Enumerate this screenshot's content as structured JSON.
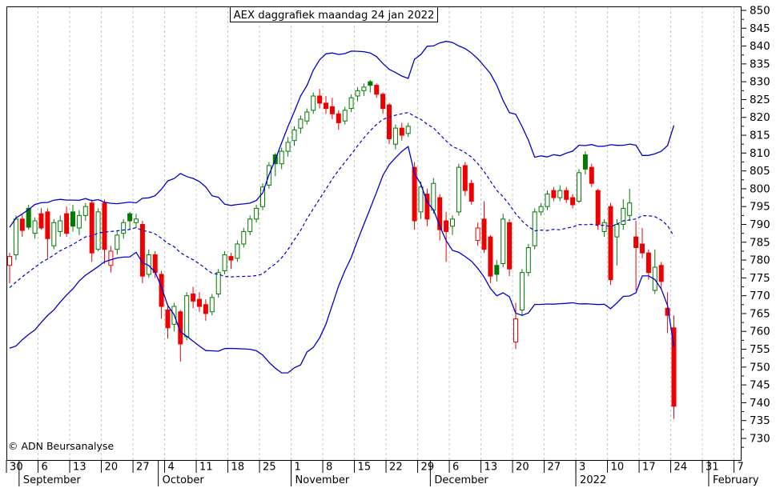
{
  "title": "AEX daggrafiek maandag 24 jan 2022",
  "copyright": "© ADN Beursanalyse",
  "chart_data": {
    "type": "candlestick",
    "indicator": "bollinger-bands",
    "title": "AEX daggrafiek maandag 24 jan 2022",
    "y_axis": {
      "min": 730,
      "max": 850,
      "step": 5,
      "minor_step": 2.5,
      "side": "right"
    },
    "x_axis": {
      "week_labels": [
        "30",
        "6",
        "13",
        "20",
        "27",
        "4",
        "11",
        "18",
        "25",
        "1",
        "8",
        "15",
        "22",
        "29",
        "6",
        "13",
        "20",
        "27",
        "3",
        "10",
        "17",
        "24",
        "31",
        "7"
      ],
      "months": [
        {
          "label": "September",
          "boundary_idx": 1.5
        },
        {
          "label": "October",
          "boundary_idx": 23.5
        },
        {
          "label": "November",
          "boundary_idx": 44.5
        },
        {
          "label": "December",
          "boundary_idx": 66.5
        },
        {
          "label": "2022",
          "boundary_idx": 89.5
        },
        {
          "label": "February",
          "boundary_idx": 110.5
        }
      ]
    },
    "grid": {
      "vertical_weekly_dashed": true
    },
    "bollinger": {
      "period": 20,
      "stddev": 2,
      "seed_closes": [
        758,
        760,
        759,
        762,
        764,
        763,
        766,
        768,
        767,
        770,
        772,
        771,
        774,
        776,
        778,
        777,
        780,
        783,
        786,
        788
      ]
    },
    "colors": {
      "up": "#007a00",
      "down": "#ee0000",
      "band": "#0000cc",
      "grid": "#c8c8c8",
      "text": "#000000",
      "background": "#ffffff"
    },
    "candles": [
      [
        "Aug 30",
        778.5,
        782,
        773.5,
        781
      ],
      [
        "Aug 31",
        781.5,
        792.5,
        780,
        791.5
      ],
      [
        "Sep 1",
        791.5,
        793,
        786.5,
        788.3
      ],
      [
        "Sep 2",
        794.5,
        795.5,
        788.5,
        789.2
      ],
      [
        "Sep 3",
        787.5,
        792,
        786,
        791
      ],
      [
        "Sep 6",
        793,
        794.5,
        788.5,
        789
      ],
      [
        "Sep 7",
        793.5,
        794.5,
        780.5,
        786
      ],
      [
        "Sep 8",
        784,
        791.5,
        783,
        790.5
      ],
      [
        "Sep 9",
        788,
        792.5,
        786.5,
        791
      ],
      [
        "Sep 10",
        793,
        795,
        786.5,
        787.5
      ],
      [
        "Sep 13",
        793.5,
        795.5,
        788,
        789.5
      ],
      [
        "Sep 14",
        789,
        794,
        787,
        792.5
      ],
      [
        "Sep 15",
        792.5,
        796,
        791,
        795
      ],
      [
        "Sep 16",
        796,
        797,
        779.5,
        782
      ],
      [
        "Sep 17",
        783,
        794.5,
        782.5,
        793.5
      ],
      [
        "Sep 20",
        796,
        797,
        779,
        783
      ],
      [
        "Sep 21",
        778.5,
        784,
        776.5,
        782.5
      ],
      [
        "Sep 22",
        783,
        788,
        781.5,
        787
      ],
      [
        "Sep 23",
        787.5,
        791.5,
        786,
        790.5
      ],
      [
        "Sep 24",
        793,
        793.5,
        788.5,
        791
      ],
      [
        "Sep 27",
        790.5,
        793,
        789,
        791.5
      ],
      [
        "Sep 28",
        790,
        791,
        773.5,
        775.5
      ],
      [
        "Sep 29",
        776,
        783,
        775,
        781.5
      ],
      [
        "Sep 30",
        781.5,
        782.5,
        775,
        776.5
      ],
      [
        "Oct 1",
        776,
        777,
        763.5,
        767
      ],
      [
        "Oct 4",
        766,
        767.5,
        758,
        761
      ],
      [
        "Oct 5",
        762,
        768,
        760,
        767
      ],
      [
        "Oct 6",
        765.5,
        766,
        751.5,
        756.5
      ],
      [
        "Oct 7",
        758.5,
        771,
        757.5,
        770
      ],
      [
        "Oct 8",
        770.5,
        772.5,
        766.5,
        768.5
      ],
      [
        "Oct 11",
        769,
        771,
        765.5,
        767
      ],
      [
        "Oct 12",
        767.5,
        769,
        763,
        765
      ],
      [
        "Oct 13",
        765.5,
        770.5,
        764.5,
        769.5
      ],
      [
        "Oct 14",
        770.5,
        777.5,
        769.5,
        776.5
      ],
      [
        "Oct 15",
        777,
        782.5,
        776,
        781.5
      ],
      [
        "Oct 18",
        781,
        782,
        777.5,
        780
      ],
      [
        "Oct 19",
        780.5,
        785.5,
        779.5,
        784.5
      ],
      [
        "Oct 20",
        784.5,
        789,
        783.5,
        788
      ],
      [
        "Oct 21",
        788,
        792.5,
        787,
        791.5
      ],
      [
        "Oct 22",
        791.5,
        795.5,
        790.5,
        794.5
      ],
      [
        "Oct 25",
        795,
        801.5,
        794,
        800.5
      ],
      [
        "Oct 26",
        801,
        807.5,
        800,
        806.5
      ],
      [
        "Oct 27",
        809.5,
        810,
        803.5,
        807
      ],
      [
        "Oct 28",
        807,
        811.5,
        805.5,
        810.5
      ],
      [
        "Oct 29",
        810.5,
        814.5,
        809,
        813
      ],
      [
        "Nov 1",
        813.5,
        817.5,
        812,
        816.5
      ],
      [
        "Nov 2",
        817,
        820.5,
        815.5,
        819.5
      ],
      [
        "Nov 3",
        819,
        822.5,
        818,
        821.5
      ],
      [
        "Nov 4",
        822,
        827,
        821,
        826
      ],
      [
        "Nov 5",
        826,
        828,
        822.5,
        824
      ],
      [
        "Nov 8",
        824,
        826,
        821,
        822.5
      ],
      [
        "Nov 9",
        823,
        825.5,
        819.5,
        821
      ],
      [
        "Nov 10",
        821,
        822,
        816.5,
        818.5
      ],
      [
        "Nov 11",
        819,
        823,
        818,
        822
      ],
      [
        "Nov 12",
        822.5,
        826.5,
        821.5,
        825.5
      ],
      [
        "Nov 15",
        826,
        828.5,
        824.5,
        827.5
      ],
      [
        "Nov 16",
        827.5,
        829.5,
        826,
        828.5
      ],
      [
        "Nov 17",
        830,
        830.5,
        827,
        829
      ],
      [
        "Nov 18",
        829,
        829.5,
        825.5,
        826.5
      ],
      [
        "Nov 19",
        826.5,
        827,
        821,
        822.5
      ],
      [
        "Nov 22",
        823.5,
        824,
        812.5,
        814
      ],
      [
        "Nov 23",
        812.5,
        818,
        811,
        817
      ],
      [
        "Nov 24",
        817,
        818.5,
        813.5,
        815
      ],
      [
        "Nov 25",
        815.5,
        818.5,
        814.5,
        817.5
      ],
      [
        "Nov 26",
        806,
        807.5,
        788.5,
        791
      ],
      [
        "Nov 29",
        793.5,
        802,
        791.5,
        800.5
      ],
      [
        "Nov 30",
        798.5,
        800,
        789.5,
        791.5
      ],
      [
        "Dec 1",
        794,
        803,
        793,
        801.5
      ],
      [
        "Dec 2",
        797.5,
        798.5,
        785.5,
        788.5
      ],
      [
        "Dec 3",
        791,
        793.5,
        779.5,
        788
      ],
      [
        "Dec 6",
        789.5,
        792.5,
        787,
        791.5
      ],
      [
        "Dec 7",
        793.5,
        807,
        792.5,
        806
      ],
      [
        "Dec 8",
        806.5,
        807.5,
        798,
        799.5
      ],
      [
        "Dec 9",
        801.5,
        802.5,
        795.5,
        796.5
      ],
      [
        "Dec 10",
        785.5,
        790.5,
        784,
        789
      ],
      [
        "Dec 13",
        791.5,
        796.5,
        782,
        783
      ],
      [
        "Dec 14",
        786.5,
        787,
        773.5,
        775.5
      ],
      [
        "Dec 15",
        778.5,
        780,
        774,
        776
      ],
      [
        "Dec 16",
        779,
        793,
        778,
        791.5
      ],
      [
        "Dec 17",
        790.5,
        791.5,
        775.5,
        777.5
      ],
      [
        "Dec 20",
        757,
        768,
        755,
        763.5
      ],
      [
        "Dec 21",
        766,
        777.5,
        764.5,
        776.5
      ],
      [
        "Dec 22",
        776.5,
        784.5,
        775.5,
        783.5
      ],
      [
        "Dec 23",
        784,
        794.5,
        783,
        793.5
      ],
      [
        "Dec 24",
        793.5,
        796,
        792.5,
        795
      ],
      [
        "Dec 27",
        795,
        799.5,
        794,
        798.5
      ],
      [
        "Dec 28",
        799.5,
        800.5,
        796.5,
        797.5
      ],
      [
        "Dec 29",
        797.5,
        801,
        796.5,
        799.5
      ],
      [
        "Dec 30",
        799.5,
        800.5,
        796,
        797
      ],
      [
        "Dec 31",
        797.5,
        798.5,
        794.5,
        795.5
      ],
      [
        "Jan 3",
        796.5,
        805.5,
        796,
        804.5
      ],
      [
        "Jan 4",
        809.5,
        810.5,
        804,
        805.5
      ],
      [
        "Jan 5",
        806,
        807,
        800.5,
        801.5
      ],
      [
        "Jan 6",
        799.5,
        800,
        788.5,
        790
      ],
      [
        "Jan 7",
        788,
        791.5,
        786.5,
        790.5
      ],
      [
        "Jan 10",
        795,
        796,
        773,
        774.5
      ],
      [
        "Jan 11",
        786.5,
        791.5,
        778.5,
        790
      ],
      [
        "Jan 12",
        790,
        797,
        788.5,
        794.5
      ],
      [
        "Jan 13",
        792.5,
        800,
        791,
        796
      ],
      [
        "Jan 14",
        786.5,
        791,
        771.5,
        783.5
      ],
      [
        "Jan 17",
        784.5,
        789,
        780.5,
        782
      ],
      [
        "Jan 18",
        782,
        783,
        774.5,
        776.5
      ],
      [
        "Jan 19",
        771.5,
        783,
        770.5,
        778
      ],
      [
        "Jan 20",
        778.5,
        779.5,
        772,
        774
      ],
      [
        "Jan 21",
        766.5,
        771,
        759.5,
        764.5
      ],
      [
        "Jan 24",
        761,
        764.5,
        735.5,
        739
      ]
    ]
  }
}
